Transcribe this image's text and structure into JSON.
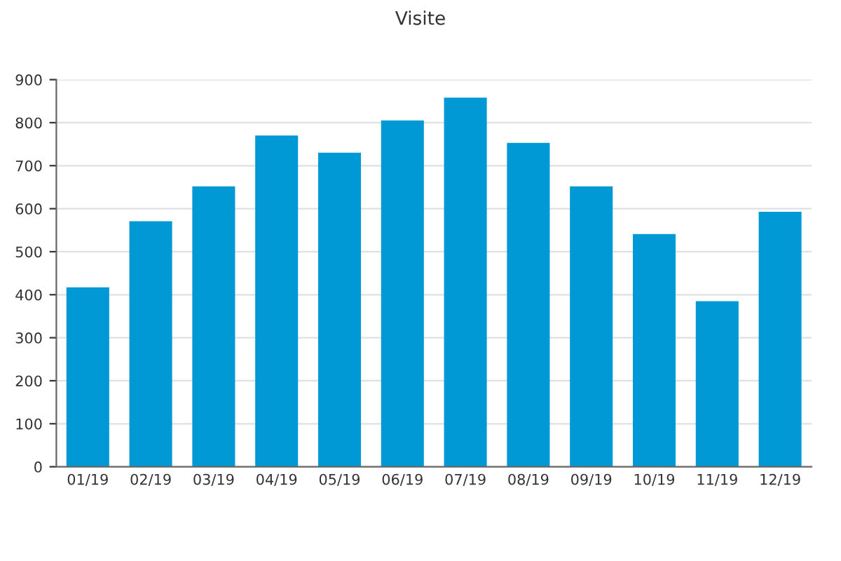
{
  "chart_data": {
    "type": "bar",
    "title": "Visite",
    "categories": [
      "01/19",
      "02/19",
      "03/19",
      "04/19",
      "05/19",
      "06/19",
      "07/19",
      "08/19",
      "09/19",
      "10/19",
      "11/19",
      "12/19"
    ],
    "values": [
      417,
      571,
      652,
      770,
      730,
      805,
      858,
      753,
      652,
      541,
      385,
      593
    ],
    "color": "#0099d5",
    "ylim": [
      0,
      900
    ],
    "yticks": [
      0,
      100,
      200,
      300,
      400,
      500,
      600,
      700,
      800,
      900
    ],
    "grid": "y",
    "legend": false
  }
}
